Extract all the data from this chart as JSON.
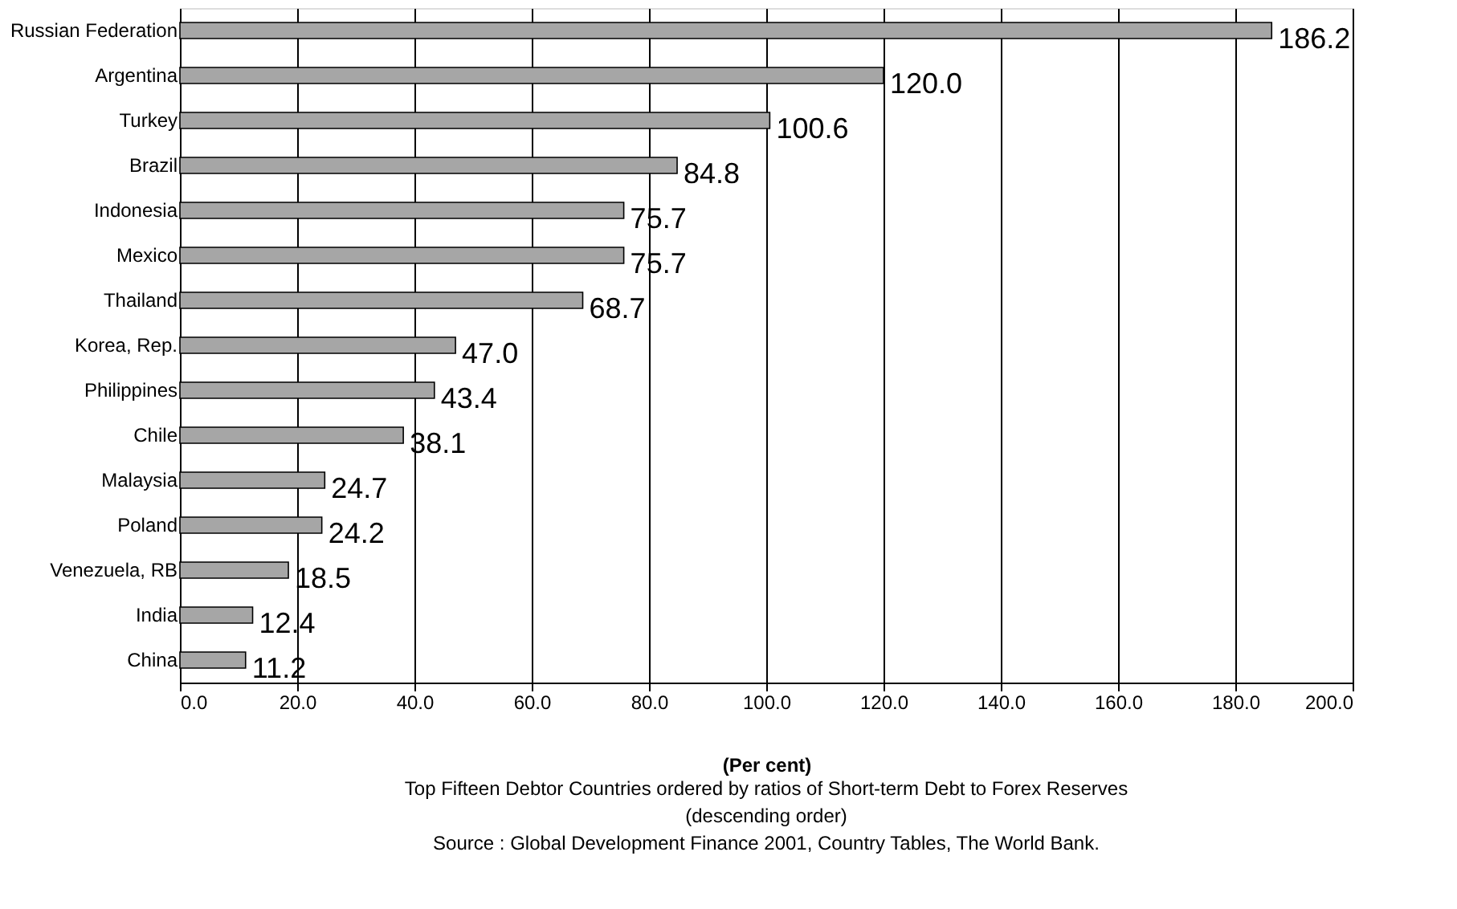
{
  "chart_data": {
    "type": "bar",
    "orientation": "horizontal",
    "categories": [
      "Russian Federation",
      "Argentina",
      "Turkey",
      "Brazil",
      "Indonesia",
      "Mexico",
      "Thailand",
      "Korea, Rep.",
      "Philippines",
      "Chile",
      "Malaysia",
      "Poland",
      "Venezuela, RB",
      "India",
      "China"
    ],
    "values": [
      186.2,
      120.0,
      100.6,
      84.8,
      75.7,
      75.7,
      68.7,
      47.0,
      43.4,
      38.1,
      24.7,
      24.2,
      18.5,
      12.4,
      11.2
    ],
    "value_labels": [
      "186.2",
      "120.0",
      "100.6",
      "84.8",
      "75.7",
      "75.7",
      "68.7",
      "47.0",
      "43.4",
      "38.1",
      "24.7",
      "24.2",
      "18.5",
      "12.4",
      "11.2"
    ],
    "color": "#a6a6a6",
    "xlim": [
      0,
      200
    ],
    "xticks": [
      {
        "value": 0,
        "label": "0.0"
      },
      {
        "value": 20,
        "label": "20.0"
      },
      {
        "value": 40,
        "label": "40.0"
      },
      {
        "value": 60,
        "label": "60.0"
      },
      {
        "value": 80,
        "label": "80.0"
      },
      {
        "value": 100,
        "label": "100.0"
      },
      {
        "value": 120,
        "label": "120.0"
      },
      {
        "value": 140,
        "label": "140.0"
      },
      {
        "value": 160,
        "label": "160.0"
      },
      {
        "value": 180,
        "label": "180.0"
      },
      {
        "value": 200,
        "label": "200.0"
      }
    ],
    "grid": "x",
    "xlabel": "(Per cent)",
    "annotations": [
      "Top Fifteen Debtor Countries ordered by ratios of Short-term Debt to Forex Reserves",
      "(descending order)",
      "Source : Global Development Finance 2001, Country Tables, The World Bank."
    ]
  }
}
